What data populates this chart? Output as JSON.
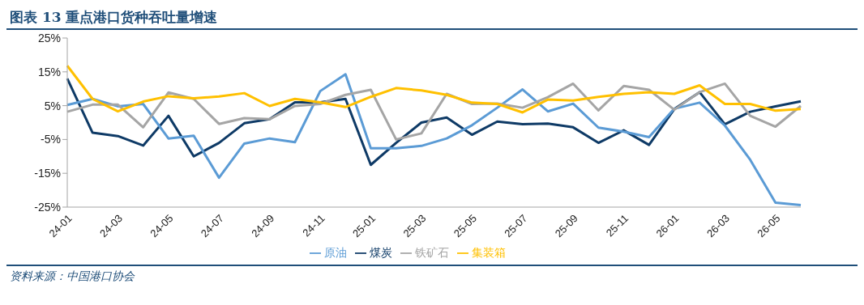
{
  "chart_data": {
    "type": "line",
    "title": "图表 13   重点港口货种吞吐量增速",
    "annotations": [
      "资料来源：中国港口协会"
    ],
    "categories": [
      "24-01",
      null,
      "24-03",
      null,
      "24-05",
      null,
      "24-07",
      null,
      "24-09",
      null,
      "24-11",
      null,
      "25-01",
      null,
      "25-03",
      null,
      "25-05",
      null,
      "25-07",
      null,
      "25-09",
      null,
      "25-11",
      null,
      "26-01",
      null,
      "26-03",
      null,
      "26-05",
      null
    ],
    "series": [
      {
        "name": "煤炭",
        "color": "#0e3a66",
        "values": [
          13,
          -3,
          -4,
          -6.8,
          2,
          -10,
          -6,
          -0.2,
          1,
          6,
          6,
          7,
          -12.5,
          -6,
          0,
          1.5,
          -3.6,
          0.3,
          -0.5,
          -0.3,
          -1.4,
          -6,
          -2.3,
          -6.6,
          4,
          9,
          -0.5,
          3.2,
          4.8,
          6.3
        ]
      },
      {
        "name": "原油",
        "color": "#5b9bd5",
        "values": [
          5.2,
          7,
          4.8,
          5.5,
          -4.7,
          -3.9,
          -16.3,
          -6.2,
          -4.7,
          -5.8,
          9.3,
          14.3,
          -7.6,
          -7.6,
          -6.9,
          -4.7,
          -0.8,
          4.4,
          9.8,
          3.3,
          5.6,
          -1.5,
          -2.7,
          -4.3,
          4.1,
          5.9,
          -0.9,
          -11,
          -23.7,
          -24.4
        ]
      },
      {
        "name": "铁矿石",
        "color": "#a5a5a5",
        "values": [
          3.2,
          5.3,
          5.3,
          -1.4,
          8.9,
          7,
          -0.4,
          1.3,
          1,
          4.9,
          5.5,
          8.2,
          9.7,
          -5,
          -3.2,
          8.5,
          5.5,
          5.6,
          4.4,
          7.5,
          11.5,
          3.6,
          10.8,
          9.7,
          3.8,
          9,
          11.5,
          2,
          -1.2,
          4.9
        ]
      },
      {
        "name": "集装箱",
        "color": "#ffc000",
        "values": [
          16.8,
          7,
          3.3,
          6.2,
          7.8,
          7.2,
          7.7,
          8.7,
          4.9,
          7,
          6,
          4.6,
          7.6,
          10.2,
          9.5,
          8.2,
          5.9,
          5.5,
          3,
          6.8,
          6.5,
          7.6,
          8.5,
          9,
          8.5,
          11,
          5.5,
          5.5,
          3.5,
          4
        ]
      }
    ],
    "ylim": [
      -25,
      25
    ],
    "yticks": [
      {
        "value": 25,
        "label": "25%"
      },
      {
        "value": 15,
        "label": "15%"
      },
      {
        "value": 5,
        "label": "5%"
      },
      {
        "value": -5,
        "label": "-5%"
      },
      {
        "value": -15,
        "label": "-15%"
      },
      {
        "value": -25,
        "label": "-25%"
      }
    ],
    "grid": false,
    "legend": "bottom",
    "marker": "none",
    "line_style": "solid"
  }
}
